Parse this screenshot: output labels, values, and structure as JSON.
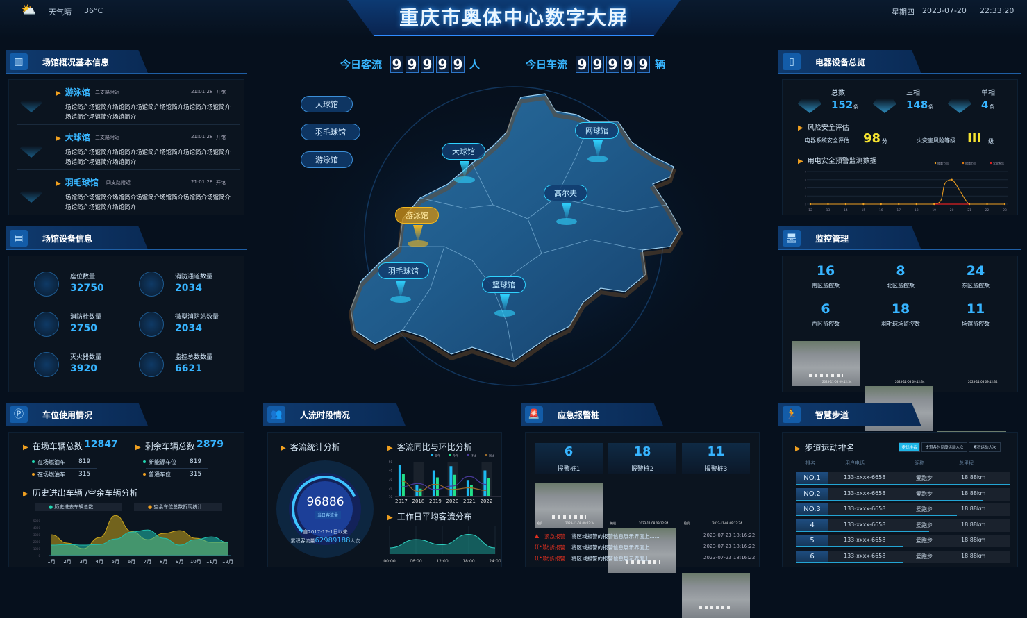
{
  "header": {
    "title": "重庆市奥体中心数字大屏",
    "weather_icon": "cloud-sun-icon",
    "weather": "天气晴",
    "temperature": "36°C",
    "weekday": "星期四",
    "date": "2023-07-20",
    "time": "22:33:20"
  },
  "counters": {
    "visitors_label": "今日客流",
    "visitors_digits": [
      "9",
      "9",
      "9",
      "9",
      "9"
    ],
    "visitors_unit": "人",
    "vehicles_label": "今日车流",
    "vehicles_digits": [
      "9",
      "9",
      "9",
      "9",
      "9"
    ],
    "vehicles_unit": "辆"
  },
  "map": {
    "side_tabs": [
      "大球馆",
      "羽毛球馆",
      "游泳馆"
    ],
    "markers": [
      {
        "label": "网球馆",
        "active": false
      },
      {
        "label": "大球馆",
        "active": false
      },
      {
        "label": "高尔夫",
        "active": false
      },
      {
        "label": "游泳馆",
        "active": true
      },
      {
        "label": "羽毛球馆",
        "active": false
      },
      {
        "label": "篮球馆",
        "active": false
      }
    ],
    "colors": {
      "marker": "#2fd3ff",
      "active": "#f2b71e"
    }
  },
  "venue_info": {
    "title": "场馆概况基本信息",
    "items": [
      {
        "name": "游泳馆",
        "location": "二支路附近",
        "time": "21:01:28",
        "status": "开馆",
        "desc": "场馆简介场馆简介场馆简介场馆简介场馆简介场馆简介场馆简介场馆简介场馆简介场馆简介",
        "icon": "swimming-icon"
      },
      {
        "name": "大球馆",
        "location": "三支路附近",
        "time": "21:01:28",
        "status": "开馆",
        "desc": "场馆简介场馆简介场馆简介场馆简介场馆简介场馆简介场馆简介场馆简介场馆简介场馆简介",
        "icon": "basketball-icon"
      },
      {
        "name": "羽毛球馆",
        "location": "四支路附近",
        "time": "21:01:28",
        "status": "开馆",
        "desc": "场馆简介场馆简介场馆简介场馆简介场馆简介场馆简介场馆简介场馆简介场馆简介场馆简介",
        "icon": "badminton-icon"
      }
    ]
  },
  "equipment": {
    "title": "场馆设备信息",
    "items": [
      {
        "label": "座位数量",
        "value": "32750",
        "icon": "seat-icon"
      },
      {
        "label": "消防通道数量",
        "value": "2034",
        "icon": "fire-exit-icon"
      },
      {
        "label": "消防栓数量",
        "value": "2750",
        "icon": "hydrant-icon"
      },
      {
        "label": "微型消防站数量",
        "value": "2034",
        "icon": "fire-station-icon"
      },
      {
        "label": "灭火器数量",
        "value": "3920",
        "icon": "extinguisher-icon"
      },
      {
        "label": "监控总数数量",
        "value": "6621",
        "icon": "camera-icon"
      }
    ]
  },
  "parking": {
    "title": "车位使用情况",
    "in_label": "在场车辆总数",
    "in_value": "12847",
    "left_label": "剩余车辆总数",
    "left_value": "2879",
    "details_left": [
      {
        "label": "在场燃油车",
        "value": "819",
        "color": "#20d6b0"
      },
      {
        "label": "在场燃油车",
        "value": "315",
        "color": "#f0a020"
      }
    ],
    "details_right": [
      {
        "label": "新能源车位",
        "value": "819",
        "color": "#20d6b0"
      },
      {
        "label": "普通车位",
        "value": "315",
        "color": "#f0a020"
      }
    ],
    "history_label": "历史进出车辆 /空余车辆分析"
  },
  "flow": {
    "title": "人流时段情况",
    "stats_label": "客流统计分析",
    "gauge_value": "96886",
    "gauge_badge": "当日客流量",
    "since": "自2017-12-1日以来",
    "total_label": "累积客流量",
    "total_value": "62989188",
    "total_unit": "人次",
    "gauge_fraction": 0.75,
    "yoy_label": "客流同比与环比分析",
    "workday_label": "工作日平均客流分布"
  },
  "alarm": {
    "title": "应急报警桩",
    "piles": [
      {
        "value": "6",
        "label": "报警桩1"
      },
      {
        "value": "18",
        "label": "报警桩2"
      },
      {
        "value": "11",
        "label": "报警桩3"
      }
    ],
    "camera_timestamp": "2023-11-08 09:12:34",
    "camera_tag": "枪机",
    "events": [
      {
        "type": "紧急报警",
        "icon": "siren-icon",
        "msg": "将区域报警的报警信息展示界面上......",
        "time": "2023-07-23 18:16:22"
      },
      {
        "type": "防拆报警",
        "icon": "signal-icon",
        "msg": "将区域报警的报警信息展示界面上......",
        "time": "2023-07-23 18:16:22"
      },
      {
        "type": "防拆报警",
        "icon": "signal-icon",
        "msg": "将区域报警的报警信息展示界面上......",
        "time": "2023-07-23 18:16:22"
      }
    ]
  },
  "electric": {
    "title": "电器设备总览",
    "stats": [
      {
        "label": "总数",
        "value": "152",
        "unit": "条",
        "icon": "network-icon"
      },
      {
        "label": "三相",
        "value": "148",
        "unit": "条",
        "icon": "three-circles-icon"
      },
      {
        "label": "单相",
        "value": "4",
        "unit": "条",
        "icon": "circle-icon"
      }
    ],
    "risk_label": "风险安全评估",
    "score_label": "电器系统安全评估",
    "score": "98",
    "score_unit": "分",
    "fire_label": "火灾害风险等级",
    "fire_level": "III",
    "fire_unit": "级",
    "monitor_label": "用电安全预警监测数据"
  },
  "monitor": {
    "title": "监控管理",
    "items": [
      {
        "value": "16",
        "label": "南区监控数"
      },
      {
        "value": "8",
        "label": "北区监控数"
      },
      {
        "value": "24",
        "label": "东区监控数"
      },
      {
        "value": "6",
        "label": "西区监控数"
      },
      {
        "value": "18",
        "label": "羽毛球场监控数"
      },
      {
        "value": "11",
        "label": "场馆监控数"
      }
    ],
    "camera_timestamp": "2023-11-08 09:12:34"
  },
  "trail": {
    "title": "智慧步道",
    "rank_label": "步道运动排名",
    "tabs": [
      {
        "label": "步伐排名",
        "active": true
      },
      {
        "label": "步道各时间段运动人次",
        "active": false
      },
      {
        "label": "累积运动人次",
        "active": false
      }
    ],
    "columns": [
      "排名",
      "用户电话",
      "昵称",
      "总里程"
    ],
    "rows": [
      {
        "rank": "NO.1",
        "phone": "133-xxxx-6658",
        "nick": "爱跑步",
        "dist": "18.88km",
        "progress": 1.0
      },
      {
        "rank": "NO.2",
        "phone": "133-xxxx-6658",
        "nick": "爱跑步",
        "dist": "18.88km",
        "progress": 0.87
      },
      {
        "rank": "NO.3",
        "phone": "133-xxxx-6658",
        "nick": "爱跑步",
        "dist": "18.88km",
        "progress": 0.75
      },
      {
        "rank": "4",
        "phone": "133-xxxx-6658",
        "nick": "爱跑步",
        "dist": "18.88km",
        "progress": 0.62
      },
      {
        "rank": "5",
        "phone": "133-xxxx-6658",
        "nick": "爱跑步",
        "dist": "18.88km",
        "progress": 0.5
      },
      {
        "rank": "6",
        "phone": "133-xxxx-6658",
        "nick": "爱跑步",
        "dist": "18.88km",
        "progress": 0.5
      }
    ]
  },
  "chart_data": [
    {
      "id": "parking-history",
      "type": "area",
      "x": [
        "1月",
        "2月",
        "3月",
        "4月",
        "5月",
        "6月",
        "7月",
        "8月",
        "9月",
        "10月",
        "11月",
        "12月"
      ],
      "ylim": [
        0,
        5000
      ],
      "yticks": [
        "0",
        "1000",
        "2000",
        "3000",
        "4000",
        "5000"
      ],
      "series": [
        {
          "name": "历史进去车辆总数",
          "color": "#1fbfae",
          "values": [
            1500,
            1600,
            1500,
            1600,
            2400,
            3400,
            3700,
            2500,
            1500,
            2300,
            2700,
            1900
          ]
        },
        {
          "name": "空余车位总数折现统计",
          "color": "#c9a41c",
          "values": [
            3000,
            1800,
            1000,
            2600,
            5800,
            3500,
            2300,
            3200,
            3600,
            2500,
            1900,
            1900
          ]
        }
      ]
    },
    {
      "id": "yoy",
      "type": "bar",
      "categories": [
        "2017",
        "2018",
        "2019",
        "2020",
        "2021",
        "2022"
      ],
      "ylim": [
        10,
        50
      ],
      "yticks": [
        "10",
        "20",
        "30",
        "40",
        "50"
      ],
      "series": [
        {
          "name": "去年",
          "type": "bar",
          "color": "#1db8f0",
          "values": [
            46,
            23,
            40,
            45,
            29,
            40
          ]
        },
        {
          "name": "今年",
          "type": "bar",
          "color": "#22e08a",
          "values": [
            36,
            19,
            32,
            35,
            23,
            31
          ]
        },
        {
          "name": "环比",
          "type": "line",
          "color": "#4a3a9a",
          "values": [
            21,
            25,
            18,
            22,
            33,
            24
          ]
        },
        {
          "name": "同比",
          "type": "line",
          "color": "#9a6a2a",
          "values": [
            28,
            16,
            24,
            18,
            20,
            17
          ]
        }
      ]
    },
    {
      "id": "workday",
      "type": "area",
      "x": [
        "00:00",
        "06:00",
        "12:00",
        "18:00",
        "24:00"
      ],
      "series": [
        {
          "color": "#1a8c86",
          "values": [
            0.3,
            0.7,
            0.45,
            0.95,
            0.3
          ]
        }
      ]
    },
    {
      "id": "electric-warning",
      "type": "line",
      "x": [
        "12",
        "13",
        "14",
        "15",
        "16",
        "17",
        "18",
        "19",
        "20",
        "21",
        "22",
        "23"
      ],
      "ylim": [
        0,
        4
      ],
      "yticks": [
        "0",
        "1",
        "2",
        "3",
        "4"
      ],
      "series": [
        {
          "name": "隐患节点",
          "color": "#f0a020",
          "values": [
            0,
            0,
            0,
            0,
            0,
            0,
            0,
            0,
            3,
            0,
            0,
            0
          ]
        },
        {
          "name": "隐患节点",
          "color": "#e07a10",
          "values": [
            0,
            0,
            0,
            0,
            0,
            0,
            0,
            0,
            0,
            0,
            0,
            0
          ]
        },
        {
          "name": "安全警告",
          "color": "#e02020",
          "values": [
            0,
            0,
            0,
            0,
            0,
            0,
            0,
            0,
            0,
            0,
            0,
            0
          ]
        }
      ]
    }
  ]
}
